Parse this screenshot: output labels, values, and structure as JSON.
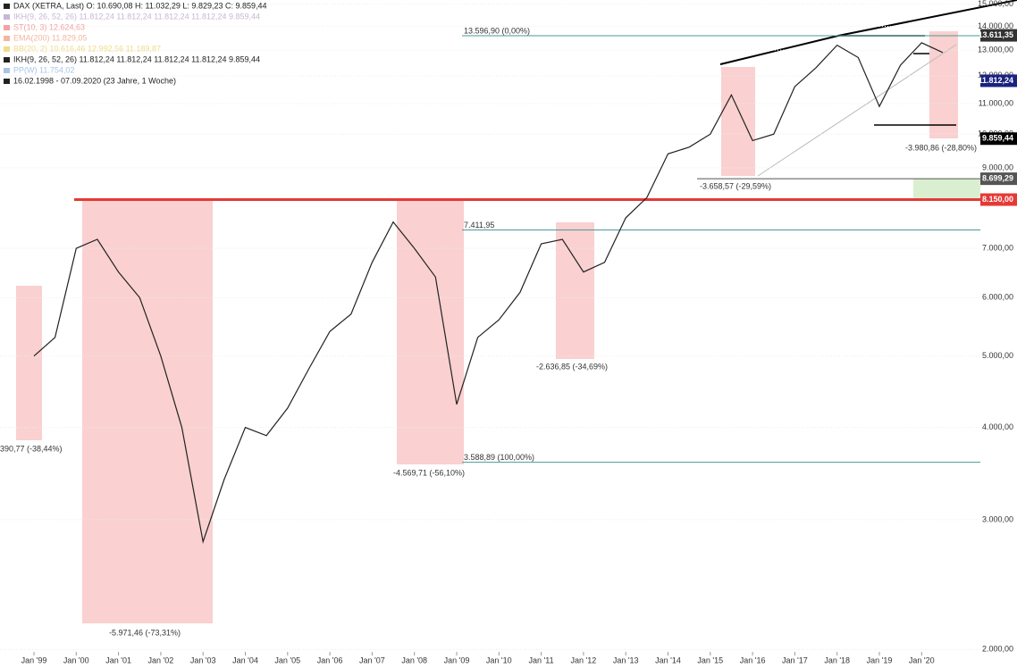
{
  "chart_data": {
    "type": "line",
    "legend_lines": [
      "DAX (XETRA, Last)  O: 10.690,08  H: 11.032,29  L: 9.829,23  C: 9.859,44",
      "IKH(9, 26, 52, 26)  11.812,24  11.812,24  11.812,24  11.812,24  9.859,44",
      "ST(10, 3)  12.624,63",
      "EMA(200)  11.829,05",
      "BB(20, 2)  10.616,46  12.992,56  11.189,87",
      "IKH(9, 26, 52, 26)  11.812,24  11.812,24  11.812,24  11.812,24  9.859,44",
      "PP(W)  11.754,02",
      "16.02.1998 - 07.09.2020  (23 Jahre, 1 Woche)"
    ],
    "categories": [
      "Jan '99",
      null,
      "Jan '00",
      null,
      "Jan '01",
      null,
      "Jan '02",
      null,
      "Jan '03",
      null,
      "Jan '04",
      null,
      "Jan '05",
      null,
      "Jan '06",
      null,
      "Jan '07",
      null,
      "Jan '08",
      null,
      "Jan '09",
      null,
      "Jan '10",
      null,
      "Jan '11",
      null,
      "Jan '12",
      null,
      "Jan '13",
      null,
      "Jan '14",
      null,
      "Jan '15",
      null,
      "Jan '16",
      null,
      "Jan '17",
      null,
      "Jan '18",
      null,
      "Jan '19",
      null,
      "Jan '20",
      null
    ],
    "series": [
      {
        "name": "DAX (XETRA, Last)",
        "color": "#222222",
        "values": [
          5000,
          5300,
          7000,
          7200,
          6500,
          6000,
          5000,
          4000,
          2800,
          3400,
          4000,
          3900,
          4250,
          4800,
          5400,
          5700,
          6700,
          7600,
          7000,
          6400,
          4300,
          5300,
          5600,
          6100,
          7100,
          7200,
          6500,
          6700,
          7700,
          8200,
          9400,
          9600,
          10000,
          11300,
          9800,
          10000,
          11600,
          12300,
          13200,
          12700,
          10900,
          12400,
          13300,
          12900
        ]
      }
    ],
    "log_scale": true,
    "grid": true,
    "ylim": [
      1985,
      15200
    ],
    "yticks": [
      {
        "value": 2000,
        "label": "2.000,00"
      },
      {
        "value": 3000,
        "label": "3.000,00"
      },
      {
        "value": 4000,
        "label": "4.000,00"
      },
      {
        "value": 5000,
        "label": "5.000,00"
      },
      {
        "value": 6000,
        "label": "6.000,00"
      },
      {
        "value": 7000,
        "label": "7.000,00"
      },
      {
        "value": 9000,
        "label": "9.000,00"
      },
      {
        "value": 10000,
        "label": "10.000,00"
      },
      {
        "value": 11000,
        "label": "11.000,00"
      },
      {
        "value": 12000,
        "label": "12.000,00"
      },
      {
        "value": 13000,
        "label": "13.000,00"
      },
      {
        "value": 14000,
        "label": "14.000,00"
      },
      {
        "value": 15000,
        "label": "15.000,00"
      }
    ],
    "price_labels": [
      {
        "value": 13611.35,
        "label": "13.611,35",
        "color": "#333333"
      },
      {
        "value": 11812.24,
        "label": "11.812,24",
        "color": "#1a237e"
      },
      {
        "value": 9859.44,
        "label": "9.859,44",
        "color": "#000000"
      },
      {
        "value": 8699.29,
        "label": "8.699,29",
        "color": "#555555"
      },
      {
        "value": 8150,
        "label": "8.150,00",
        "color": "#e53935"
      }
    ],
    "reference_lines": [
      {
        "value": 13596.9,
        "label": "13.596,90 (0,00%)",
        "color": "#4a9a9a"
      },
      {
        "value": 7411.95,
        "label": "7.411,95",
        "color": "#4a9a9a"
      },
      {
        "value": 3588.89,
        "label": "3.588,89 (100,00%)",
        "color": "#4a9a9a"
      },
      {
        "value": 8699.29,
        "label": "-3.658,57 (-29,59%)",
        "color": "#555555"
      },
      {
        "value": 8150,
        "color": "#e53935"
      }
    ],
    "annotations": [
      "390,77 (-38,44%)",
      "-5.971,46 (-73,31%)",
      "-4.569,71 (-56,10%)",
      "-2.636,85 (-34,69%)",
      "-3.980,86 (-28,80%)"
    ]
  }
}
